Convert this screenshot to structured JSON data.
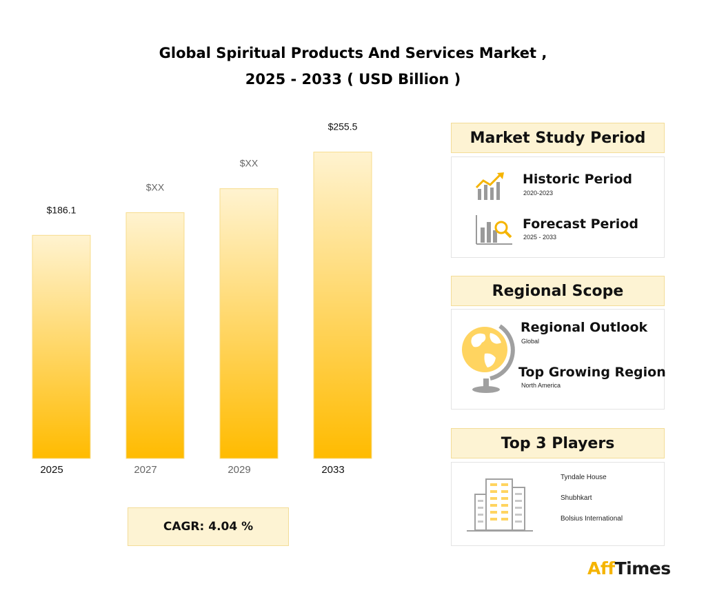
{
  "title_line1": "Global Spiritual Products And Services Market ,",
  "title_line2": "2025 - 2033 ( USD Billion )",
  "chart_data": {
    "type": "bar",
    "categories": [
      "2025",
      "2027",
      "2029",
      "2033"
    ],
    "values": [
      186.1,
      205,
      225,
      255.5
    ],
    "data_labels": [
      "$186.1",
      "$XX",
      "$XX",
      "$255.5"
    ],
    "ylim": [
      0,
      280
    ],
    "grid": false,
    "bar_gradient": [
      "#fff3d0",
      "#ffbb00"
    ]
  },
  "cagr": "CAGR: 4.04 %",
  "market_study": {
    "heading": "Market Study Period",
    "historic_title": "Historic Period",
    "historic_range": "2020-2023",
    "forecast_title": "Forecast Period",
    "forecast_range": "2025 - 2033"
  },
  "regional": {
    "heading": "Regional Scope",
    "outlook_title": "Regional Outlook",
    "outlook_value": "Global",
    "growing_title": "Top Growing Region",
    "growing_value": "North America"
  },
  "players": {
    "heading": "Top 3 Players",
    "list": [
      "Tyndale House",
      "Shubhkart",
      "Bolsius International"
    ]
  },
  "logo": {
    "part1": "Aff",
    "part2": "Times"
  },
  "colors": {
    "accent": "#ffbb00",
    "panel_fill": "#fdf3d3",
    "panel_border": "#f3dc97",
    "icon_gray": "#9a9a9a"
  }
}
